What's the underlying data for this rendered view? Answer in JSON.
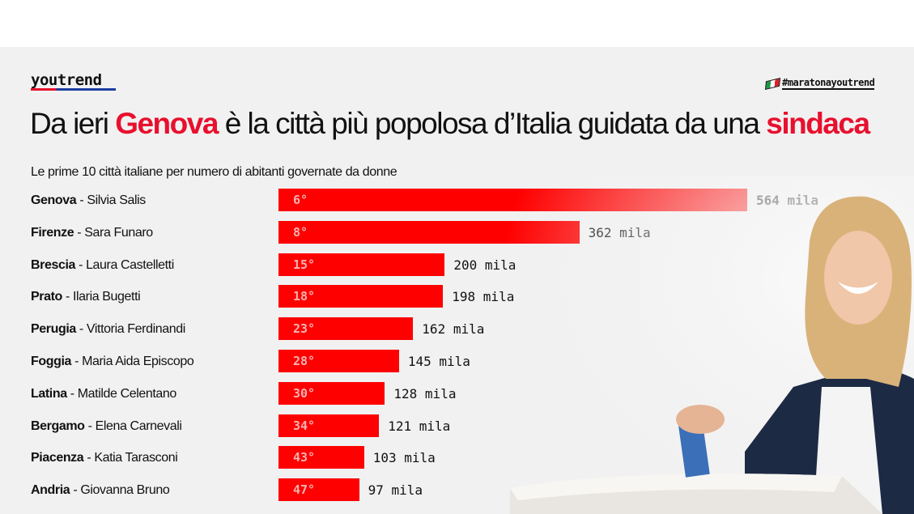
{
  "brand": "youtrend",
  "hashtag": "#maratonayoutrend",
  "title": {
    "pre": "Da ieri ",
    "hl1": "Genova",
    "mid": " è la città più popolosa d’Italia guidata da una ",
    "hl2": "sindaca"
  },
  "colors": {
    "accent": "#e8102e",
    "bar": "#ff0000"
  },
  "chart_data": {
    "type": "bar",
    "orientation": "horizontal",
    "title": "Le prime 10 città italiane per numero di abitanti governate da donne",
    "unit": "mila",
    "categories": [
      "Genova",
      "Firenze",
      "Brescia",
      "Prato",
      "Perugia",
      "Foggia",
      "Latina",
      "Bergamo",
      "Piacenza",
      "Andria"
    ],
    "mayors": [
      "Silvia Salis",
      "Sara Funaro",
      "Laura Castelletti",
      "Ilaria Bugetti",
      "Vittoria Ferdinandi",
      "Maria Aida Episcopo",
      "Matilde Celentano",
      "Elena Carnevali",
      "Katia Tarasconi",
      "Giovanna Bruno"
    ],
    "ranks": [
      "6°",
      "8°",
      "15°",
      "18°",
      "23°",
      "28°",
      "30°",
      "34°",
      "43°",
      "47°"
    ],
    "values": [
      564,
      362,
      200,
      198,
      162,
      145,
      128,
      121,
      103,
      97
    ],
    "value_labels": [
      "564 mila",
      "362 mila",
      "200 mila",
      "198 mila",
      "162 mila",
      "145 mila",
      "128 mila",
      "121 mila",
      "103 mila",
      "97 mila"
    ]
  }
}
